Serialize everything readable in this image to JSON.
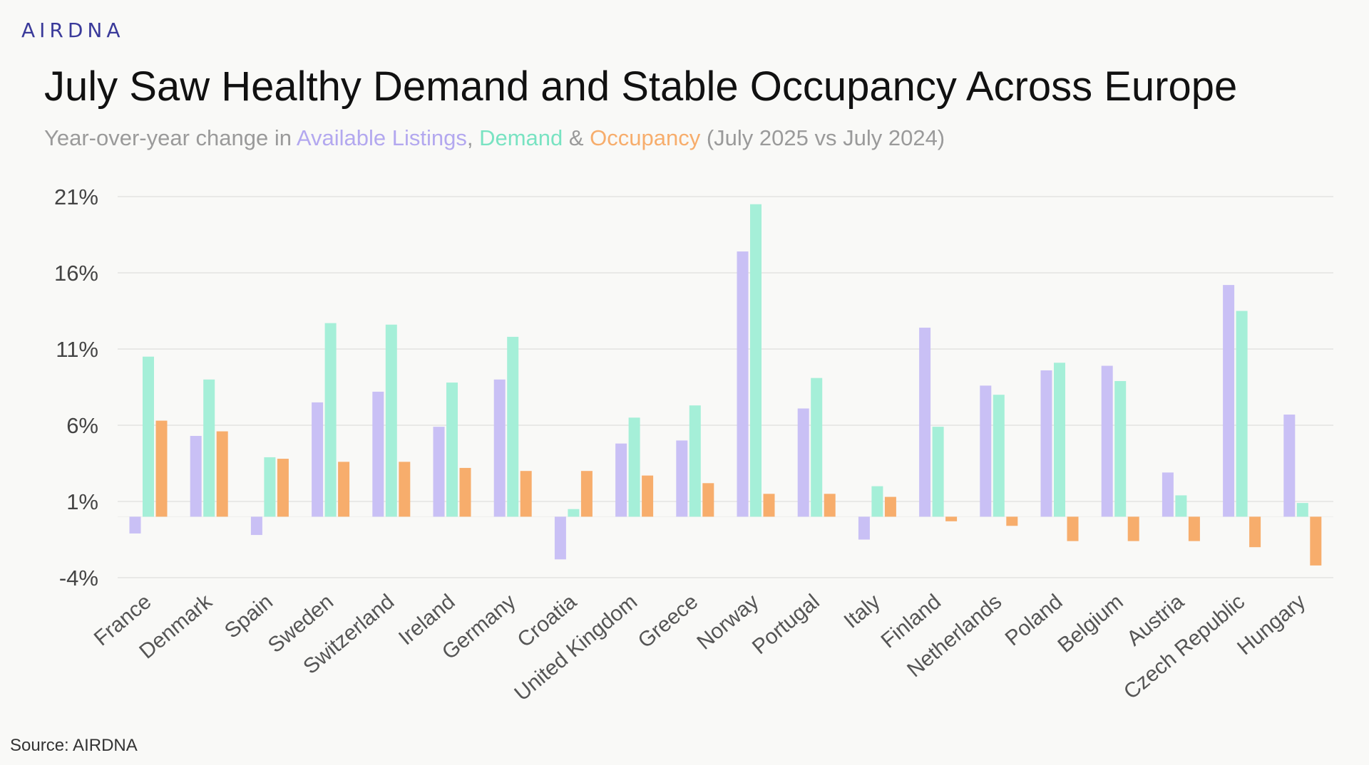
{
  "brand": {
    "logo_text": "AIRDNA"
  },
  "title": "July Saw Healthy Demand and Stable Occupancy Across Europe",
  "subtitle": {
    "prefix": "Year-over-year change in ",
    "listings": "Available Listings",
    "sep1": ", ",
    "demand": "Demand",
    "sep2": " & ",
    "occupancy": "Occupancy",
    "suffix": " (July 2025 vs July 2024)"
  },
  "source": "Source: AIRDNA",
  "colors": {
    "listings": "#c9c0f5",
    "demand": "#a5efd8",
    "occupancy": "#f7ad6c",
    "gridline": "#e4e4e2",
    "tick_text": "#444444",
    "category_text": "#555555"
  },
  "chart_data": {
    "type": "bar",
    "categories": [
      "France",
      "Denmark",
      "Spain",
      "Sweden",
      "Switzerland",
      "Ireland",
      "Germany",
      "Croatia",
      "United Kingdom",
      "Greece",
      "Norway",
      "Portugal",
      "Italy",
      "Finland",
      "Netherlands",
      "Poland",
      "Belgium",
      "Austria",
      "Czech Republic",
      "Hungary"
    ],
    "series": [
      {
        "name": "Available Listings",
        "color_key": "listings",
        "values": [
          -1.1,
          5.3,
          -1.2,
          7.5,
          8.2,
          5.9,
          9.0,
          -2.8,
          4.8,
          5.0,
          17.4,
          7.1,
          -1.5,
          12.4,
          8.6,
          9.6,
          9.9,
          2.9,
          15.2,
          6.7
        ]
      },
      {
        "name": "Demand",
        "color_key": "demand",
        "values": [
          10.5,
          9.0,
          3.9,
          12.7,
          12.6,
          8.8,
          11.8,
          0.5,
          6.5,
          7.3,
          20.5,
          9.1,
          2.0,
          5.9,
          8.0,
          10.1,
          8.9,
          1.4,
          13.5,
          0.9
        ]
      },
      {
        "name": "Occupancy",
        "color_key": "occupancy",
        "values": [
          6.3,
          5.6,
          3.8,
          3.6,
          3.6,
          3.2,
          3.0,
          3.0,
          2.7,
          2.2,
          1.5,
          1.5,
          1.3,
          -0.3,
          -0.6,
          -1.6,
          -1.6,
          -1.6,
          -2.0,
          -3.2
        ]
      }
    ],
    "yticks": [
      "-4%",
      "1%",
      "6%",
      "11%",
      "16%",
      "21%"
    ],
    "ytick_values": [
      -4,
      1,
      6,
      11,
      16,
      21
    ],
    "ylim": [
      -4,
      21
    ],
    "xlabel": "",
    "ylabel": "",
    "grid": true,
    "legend": "in subtitle"
  }
}
